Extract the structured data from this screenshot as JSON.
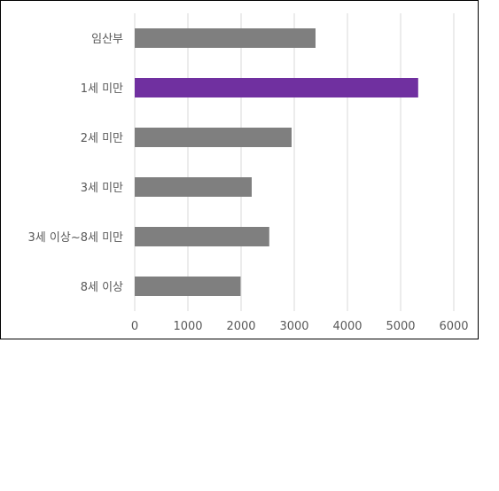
{
  "chart_data": {
    "type": "bar",
    "orientation": "horizontal",
    "categories": [
      "임산부",
      "1세 미만",
      "2세 미만",
      "3세 미만",
      "3세 이상~8세 미만",
      "8세 이상"
    ],
    "values": [
      3400,
      5330,
      2950,
      2200,
      2530,
      1990
    ],
    "highlight_index": 1,
    "colors": {
      "bar": "#7f7f7f",
      "highlight": "#7030a0",
      "grid": "#d9d9d9"
    },
    "title": "",
    "xlabel": "",
    "ylabel": "",
    "xlim": [
      0,
      6000
    ],
    "xticks": [
      0,
      1000,
      2000,
      3000,
      4000,
      5000,
      6000
    ],
    "grid": true,
    "legend": "none"
  }
}
